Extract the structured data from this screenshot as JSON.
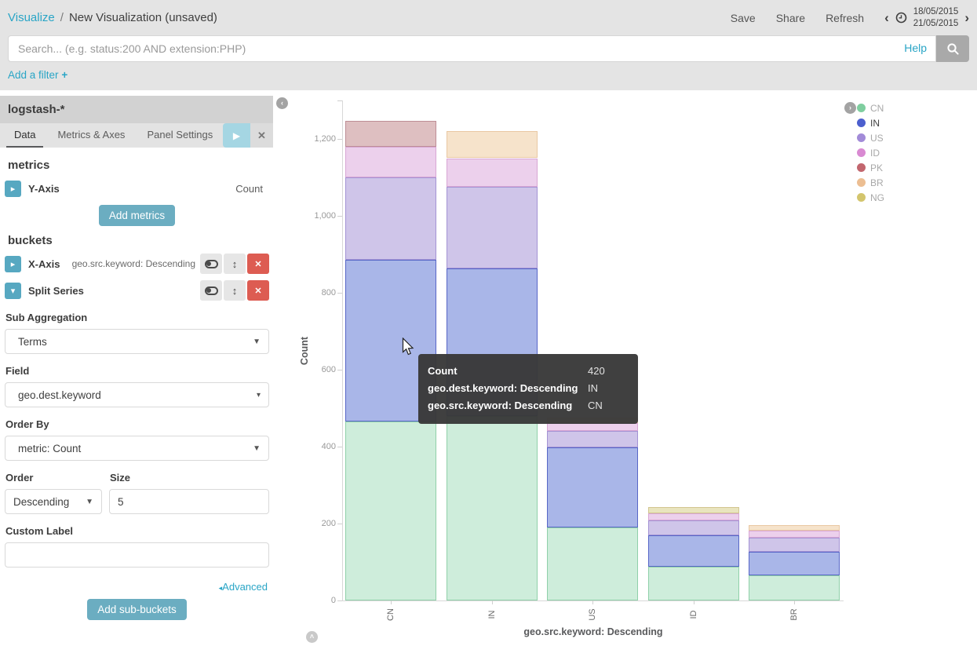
{
  "topbar": {
    "breadcrumb": {
      "section": "Visualize",
      "separator": "/",
      "page": "New Visualization (unsaved)"
    },
    "actions": {
      "save": "Save",
      "share": "Share",
      "refresh": "Refresh"
    },
    "timepicker": {
      "prev": "‹",
      "next": "›",
      "date_from": "18/05/2015",
      "date_to": "21/05/2015"
    },
    "search": {
      "placeholder": "Search... (e.g. status:200 AND extension:PHP)",
      "help_label": "Help"
    },
    "add_filter": {
      "label": "Add a filter",
      "plus": "+"
    }
  },
  "sidebar": {
    "index_pattern": "logstash-*",
    "tabs": [
      {
        "label": "Data",
        "active": true
      },
      {
        "label": "Metrics & Axes",
        "active": false
      },
      {
        "label": "Panel Settings",
        "active": false
      }
    ],
    "metrics": {
      "heading": "metrics",
      "y_axis_label": "Y-Axis",
      "y_axis_value": "Count",
      "add_button": "Add metrics"
    },
    "buckets": {
      "heading": "buckets",
      "x_axis_label": "X-Axis",
      "x_axis_value": "geo.src.keyword: Descending",
      "split_series_label": "Split Series"
    },
    "fields": {
      "sub_aggregation": {
        "label": "Sub Aggregation",
        "value": "Terms"
      },
      "field": {
        "label": "Field",
        "value": "geo.dest.keyword"
      },
      "order_by": {
        "label": "Order By",
        "value": "metric: Count"
      },
      "order": {
        "label": "Order",
        "value": "Descending"
      },
      "size": {
        "label": "Size",
        "value": "5"
      },
      "custom_label": {
        "label": "Custom Label",
        "value": ""
      }
    },
    "advanced_label": "Advanced",
    "add_subbuckets_button": "Add sub-buckets"
  },
  "chart_data": {
    "type": "bar",
    "stacked": true,
    "xlabel": "geo.src.keyword: Descending",
    "ylabel": "Count",
    "categories": [
      "CN",
      "IN",
      "US",
      "ID",
      "BR"
    ],
    "series": [
      {
        "name": "CN",
        "values": [
          465,
          480,
          190,
          88,
          66
        ],
        "legend_color": "#7fce9f",
        "fill": "#ceeddb",
        "border": "#8fd0a9"
      },
      {
        "name": "IN",
        "values": [
          420,
          384,
          208,
          82,
          60
        ],
        "legend_color": "#4c5fce",
        "fill": "#a9b6e8",
        "border": "#5766c7",
        "legend_highlight": true
      },
      {
        "name": "US",
        "values": [
          215,
          211,
          43,
          39,
          38
        ],
        "legend_color": "#a28bd8",
        "fill": "#cfc5e9",
        "border": "#a493d4"
      },
      {
        "name": "ID",
        "values": [
          80,
          75,
          20,
          17,
          17
        ],
        "legend_color": "#d98ad2",
        "fill": "#ecd0ec",
        "border": "#d8a6d4"
      },
      {
        "name": "PK",
        "values": [
          67,
          0,
          0,
          0,
          0
        ],
        "legend_color": "#c2666e",
        "fill": "#debfc1",
        "border": "#be8e96"
      },
      {
        "name": "BR",
        "values": [
          0,
          70,
          15,
          0,
          15
        ],
        "legend_color": "#ecbe92",
        "fill": "#f6e3cb",
        "border": "#e9c8a3"
      },
      {
        "name": "NG",
        "values": [
          0,
          0,
          0,
          17,
          0
        ],
        "legend_color": "#d3c56d",
        "fill": "#e9e4be",
        "border": "#d2c690"
      }
    ],
    "ylim": [
      0,
      1300
    ],
    "yticks": [
      0,
      200,
      400,
      600,
      800,
      1000,
      1200
    ],
    "ytick_labels": [
      "0",
      "200",
      "400",
      "600",
      "800",
      "1,000",
      "1,200"
    ],
    "grid": false,
    "legend_position": "right"
  },
  "tooltip": {
    "rows": [
      {
        "label": "Count",
        "value": "420"
      },
      {
        "label": "geo.dest.keyword: Descending",
        "value": "IN"
      },
      {
        "label": "geo.src.keyword: Descending",
        "value": "CN"
      }
    ]
  },
  "colors": {
    "accent": "#29a5c6",
    "teal_button": "#6badc1",
    "danger": "#dd5c52",
    "topbar_bg": "#e4e4e4"
  }
}
